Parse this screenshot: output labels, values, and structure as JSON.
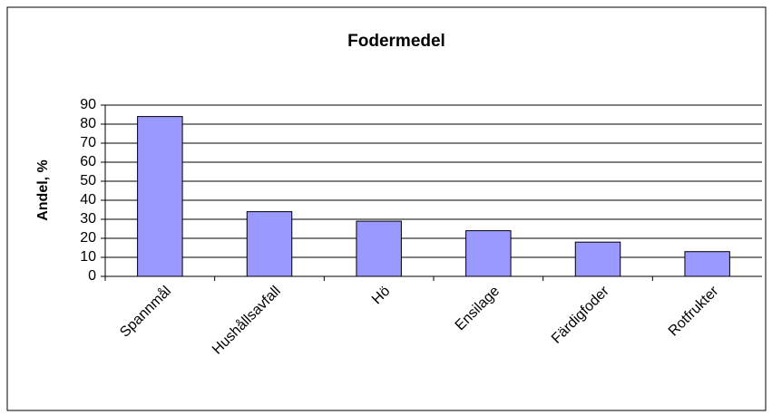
{
  "chart_data": {
    "type": "bar",
    "title": "Fodermedel",
    "y_label": "Andel, %",
    "categories": [
      "Spannmål",
      "Hushållsavfall",
      "Hö",
      "Ensilage",
      "Färdigfoder",
      "Rotfrukter"
    ],
    "values": [
      84,
      34,
      29,
      24,
      18,
      13
    ],
    "color": "#9999ff",
    "ylim": [
      0,
      90
    ],
    "yticks": [
      0,
      10,
      20,
      30,
      40,
      50,
      60,
      70,
      80,
      90
    ],
    "grid": true
  }
}
